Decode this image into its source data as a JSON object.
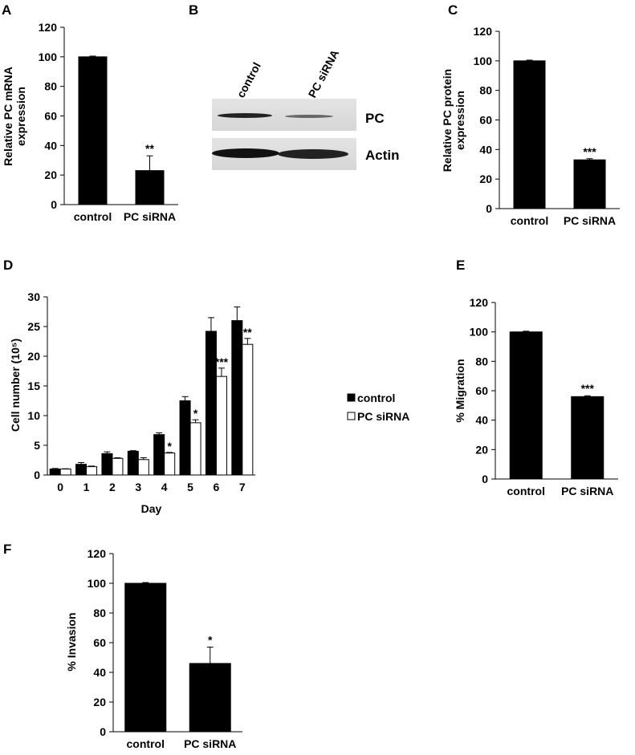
{
  "chart_data": [
    {
      "type": "bar",
      "label": "A",
      "ylabel": [
        "Relative PC mRNA",
        "expression"
      ],
      "categories": [
        "control",
        "PC siRNA"
      ],
      "values": [
        100,
        23
      ],
      "errors": [
        0.5,
        10
      ],
      "color": "#000000",
      "ylim": [
        0,
        120
      ],
      "yticks": [
        0,
        20,
        40,
        60,
        80,
        100,
        120
      ],
      "annotations": [
        {
          "index": 1,
          "text": "**"
        }
      ]
    },
    {
      "type": "bar",
      "label": "C",
      "ylabel": [
        "Relative PC protein",
        "expression"
      ],
      "categories": [
        "control",
        "PC siRNA"
      ],
      "values": [
        100,
        33
      ],
      "errors": [
        0.5,
        0.8
      ],
      "color": "#000000",
      "ylim": [
        0,
        120
      ],
      "yticks": [
        0,
        20,
        40,
        60,
        80,
        100,
        120
      ],
      "annotations": [
        {
          "index": 1,
          "text": "***"
        }
      ]
    },
    {
      "type": "grouped_bar",
      "label": "D",
      "ylabel": [
        "Cell number (10⁵)"
      ],
      "xlabel": "Day",
      "categories": [
        "0",
        "1",
        "2",
        "3",
        "4",
        "5",
        "6",
        "7"
      ],
      "series": [
        {
          "name": "control",
          "color": "#000000",
          "values": [
            1,
            1.8,
            3.6,
            4,
            6.8,
            12.5,
            24.2,
            26
          ],
          "errors": [
            0.1,
            0.3,
            0.3,
            0.1,
            0.3,
            0.7,
            2.3,
            2.3
          ]
        },
        {
          "name": "PC siRNA",
          "color": "#ffffff",
          "values": [
            1,
            1.4,
            2.8,
            2.6,
            3.7,
            8.8,
            16.6,
            22
          ],
          "errors": [
            0.05,
            0.1,
            0.1,
            0.3,
            0.1,
            0.5,
            1.4,
            1
          ]
        }
      ],
      "ylim": [
        0,
        30
      ],
      "yticks": [
        0,
        5,
        10,
        15,
        20,
        25,
        30
      ],
      "legend": "right",
      "annotations": [
        {
          "series": 1,
          "index": 4,
          "text": "*"
        },
        {
          "series": 1,
          "index": 5,
          "text": "*"
        },
        {
          "series": 1,
          "index": 6,
          "text": "***"
        },
        {
          "series": 1,
          "index": 7,
          "text": "**"
        }
      ]
    },
    {
      "type": "bar",
      "label": "E",
      "ylabel": [
        "% Migration"
      ],
      "categories": [
        "control",
        "PC siRNA"
      ],
      "values": [
        100,
        56
      ],
      "errors": [
        0.5,
        0.6
      ],
      "color": "#000000",
      "ylim": [
        0,
        120
      ],
      "yticks": [
        0,
        20,
        40,
        60,
        80,
        100,
        120
      ],
      "annotations": [
        {
          "index": 1,
          "text": "***"
        }
      ]
    },
    {
      "type": "bar",
      "label": "F",
      "ylabel": [
        "% Invasion"
      ],
      "categories": [
        "control",
        "PC siRNA"
      ],
      "values": [
        100,
        46
      ],
      "errors": [
        0.5,
        11
      ],
      "color": "#000000",
      "ylim": [
        0,
        120
      ],
      "yticks": [
        0,
        20,
        40,
        60,
        80,
        100,
        120
      ],
      "annotations": [
        {
          "index": 1,
          "text": "*"
        }
      ]
    }
  ],
  "blot": {
    "label": "B",
    "lanes": [
      "control",
      "PC siRNA"
    ],
    "bands": [
      "PC",
      "Actin"
    ]
  }
}
